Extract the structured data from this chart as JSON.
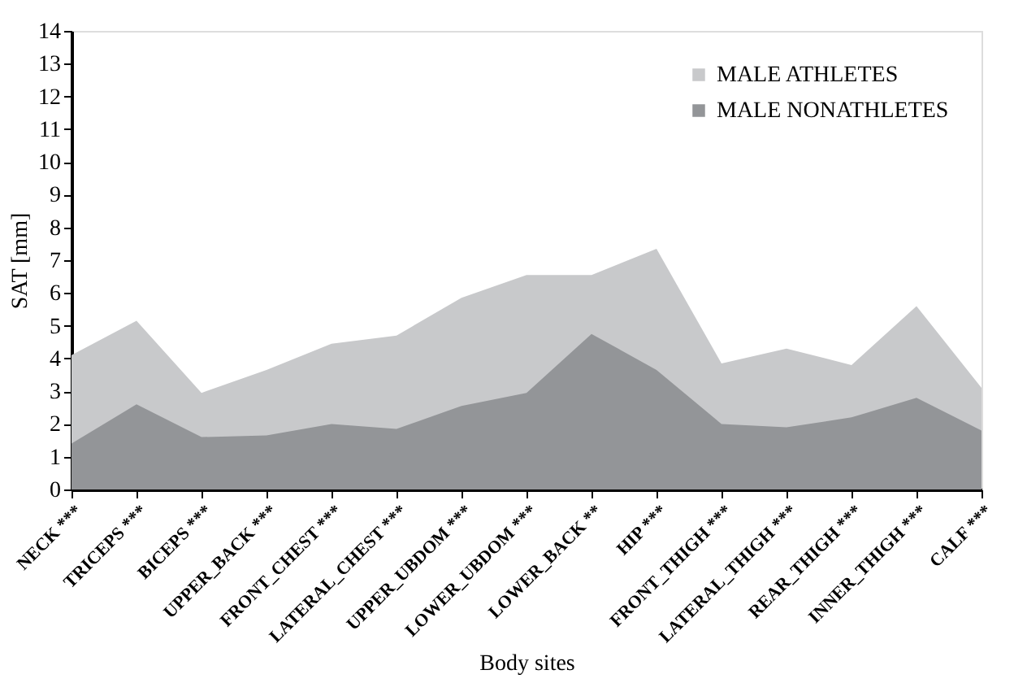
{
  "chart_data": {
    "type": "area",
    "xlabel": "Body sites",
    "ylabel": "SAT [mm]",
    "categories": [
      "NECK ***",
      "TRICEPS ***",
      "BICEPS ***",
      "UPPER_BACK ***",
      "FRONT_CHEST ***",
      "LATERAL_CHEST ***",
      "UPPER_UBDOM ***",
      "LOWER_UBDOM ***",
      "LOWER_BACK **",
      "HIP ***",
      "FRONT_THIGH ***",
      "LATERAL_THIGH ***",
      "REAR_THIGH ***",
      "INNER_THIGH  ***",
      "CALF ***"
    ],
    "series": [
      {
        "name": "MALE ATHLETES",
        "color": "#c8c9cb",
        "values": [
          4.1,
          5.15,
          2.95,
          3.65,
          4.45,
          4.7,
          5.85,
          6.55,
          6.55,
          7.35,
          3.85,
          4.3,
          3.8,
          5.6,
          3.1
        ]
      },
      {
        "name": "MALE NONATHLETES",
        "color": "#939598",
        "values": [
          1.4,
          2.6,
          1.6,
          1.65,
          2.0,
          1.85,
          2.55,
          2.95,
          4.75,
          3.65,
          2.0,
          1.9,
          2.2,
          2.8,
          1.8
        ]
      }
    ],
    "ylim": [
      0,
      14
    ],
    "yticks": [
      0,
      1,
      2,
      3,
      4,
      5,
      6,
      7,
      8,
      9,
      10,
      11,
      12,
      13,
      14
    ],
    "grid": false,
    "legend": "top right"
  }
}
